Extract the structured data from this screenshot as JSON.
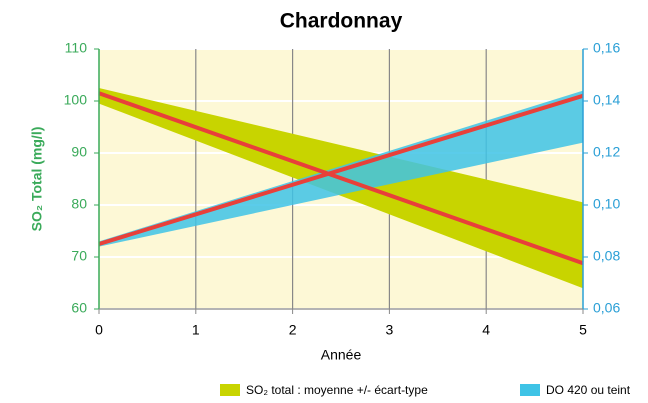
{
  "chart_data": {
    "type": "band-line",
    "title": "Chardonnay",
    "x_label": "Année",
    "y_label": "SO₂ Total (mg/l)",
    "x": [
      0,
      5
    ],
    "xlim": [
      0,
      5
    ],
    "xticks": [
      0,
      1,
      2,
      3,
      4,
      5
    ],
    "ylim": [
      60,
      110
    ],
    "yticks": [
      60,
      70,
      80,
      90,
      100,
      110
    ],
    "y2lim": [
      0.06,
      0.16
    ],
    "y2ticks": [
      {
        "value": 0.06,
        "label": "0,06"
      },
      {
        "value": 0.08,
        "label": "0,08"
      },
      {
        "value": 0.1,
        "label": "0,10"
      },
      {
        "value": 0.12,
        "label": "0,12"
      },
      {
        "value": 0.14,
        "label": "0,14"
      },
      {
        "value": 0.16,
        "label": "0,16"
      }
    ],
    "y_axis_color": "#3aaa5a",
    "y2_axis_color": "#2a9fd6",
    "line_color": "#e8403a",
    "background": "#fdf8d6",
    "grid": true,
    "series": [
      {
        "name": "SO₂ total : moyenne +/- écart-type",
        "color": "#c8d400",
        "axis": "y",
        "values": [
          101.5,
          68.8
        ],
        "lower": [
          99.5,
          64
        ],
        "upper": [
          102.5,
          80.5
        ]
      },
      {
        "name": "DO 420 ou teint",
        "color": "#3ec3e6",
        "axis": "y2",
        "values": [
          0.085,
          0.142
        ],
        "lower": [
          0.084,
          0.124
        ],
        "upper": [
          0.086,
          0.144
        ]
      }
    ]
  }
}
